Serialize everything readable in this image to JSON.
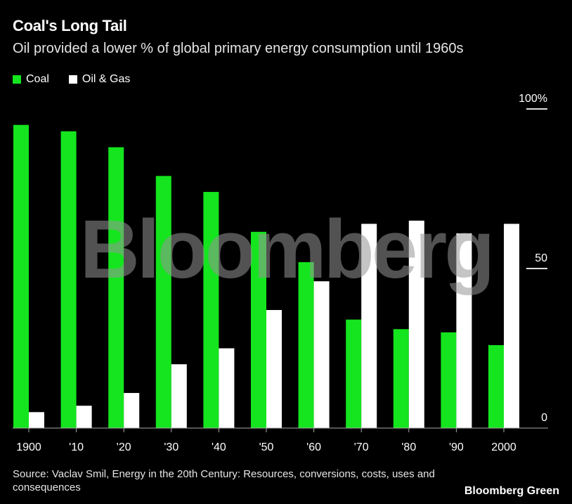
{
  "title": "Coal's Long Tail",
  "subtitle": "Oil provided a lower % of global primary energy consumption until 1960s",
  "source": "Source: Vaclav Smil, Energy in the 20th Century: Resources, conversions, costs, uses and consequences",
  "brand": "Bloomberg Green",
  "watermark": "Bloomberg",
  "chart_data": {
    "type": "bar",
    "title": "Coal's Long Tail",
    "categories": [
      "1900",
      "'10",
      "'20",
      "'30",
      "'40",
      "'50",
      "'60",
      "'70",
      "'80",
      "'90",
      "2000"
    ],
    "series": [
      {
        "name": "Coal",
        "color": "#14e51e",
        "values": [
          95,
          93,
          88,
          79,
          74,
          61.5,
          52,
          34,
          31,
          30,
          26
        ]
      },
      {
        "name": "Oil & Gas",
        "color": "#ffffff",
        "values": [
          5,
          7,
          11,
          20,
          25,
          37,
          46,
          64,
          65,
          61,
          64
        ]
      }
    ],
    "yticks": [
      {
        "value": 0,
        "label": "0"
      },
      {
        "value": 50,
        "label": "50"
      },
      {
        "value": 100,
        "label": "100%"
      }
    ],
    "ylim": [
      0,
      100
    ],
    "legend": "top-left",
    "grid": false
  }
}
